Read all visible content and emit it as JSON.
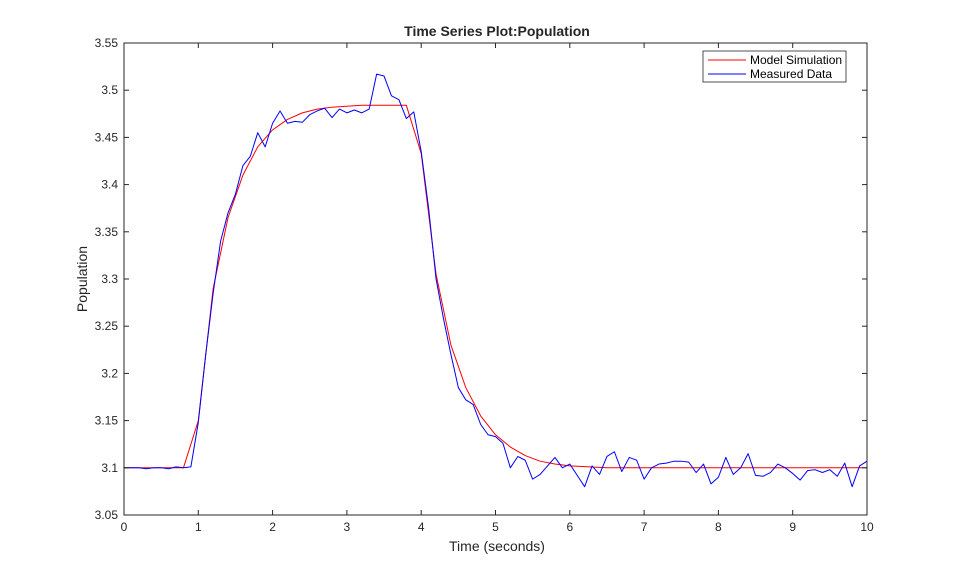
{
  "chart_data": {
    "type": "line",
    "title": "Time Series Plot:Population",
    "xlabel": "Time (seconds)",
    "ylabel": "Population",
    "xlim": [
      0,
      10
    ],
    "ylim": [
      3.05,
      3.55
    ],
    "xticks": [
      "0",
      "1",
      "2",
      "3",
      "4",
      "5",
      "6",
      "7",
      "8",
      "9",
      "10"
    ],
    "yticks": [
      "3.05",
      "3.1",
      "3.15",
      "3.2",
      "3.25",
      "3.3",
      "3.35",
      "3.4",
      "3.45",
      "3.5",
      "3.55"
    ],
    "grid": false,
    "legend_position": "top-right",
    "series": [
      {
        "name": "Model Simulation",
        "color": "#ff0000",
        "x": [
          0,
          0.8,
          1.0,
          1.2,
          1.4,
          1.6,
          1.8,
          2.0,
          2.2,
          2.4,
          2.6,
          2.8,
          3.0,
          3.2,
          3.4,
          3.6,
          3.8,
          4.0,
          4.2,
          4.4,
          4.6,
          4.8,
          5.0,
          5.2,
          5.4,
          5.6,
          5.8,
          6.0,
          6.5,
          7.0,
          8.0,
          9.0,
          10.0
        ],
        "values": [
          3.1,
          3.1,
          3.15,
          3.29,
          3.365,
          3.41,
          3.44,
          3.458,
          3.469,
          3.476,
          3.48,
          3.482,
          3.483,
          3.484,
          3.484,
          3.484,
          3.484,
          3.433,
          3.305,
          3.23,
          3.185,
          3.155,
          3.135,
          3.122,
          3.113,
          3.107,
          3.104,
          3.102,
          3.1,
          3.1,
          3.1,
          3.1,
          3.1
        ]
      },
      {
        "name": "Measured Data",
        "color": "#0000ff",
        "x": [
          0,
          0.1,
          0.2,
          0.3,
          0.4,
          0.5,
          0.6,
          0.7,
          0.8,
          0.9,
          1.0,
          1.1,
          1.2,
          1.3,
          1.4,
          1.5,
          1.6,
          1.7,
          1.8,
          1.9,
          2.0,
          2.1,
          2.2,
          2.3,
          2.4,
          2.5,
          2.6,
          2.7,
          2.8,
          2.9,
          3.0,
          3.1,
          3.2,
          3.3,
          3.4,
          3.5,
          3.6,
          3.7,
          3.8,
          3.9,
          4.0,
          4.1,
          4.2,
          4.3,
          4.4,
          4.5,
          4.6,
          4.7,
          4.8,
          4.9,
          5.0,
          5.1,
          5.2,
          5.3,
          5.4,
          5.5,
          5.6,
          5.7,
          5.8,
          5.9,
          6.0,
          6.1,
          6.2,
          6.3,
          6.4,
          6.5,
          6.6,
          6.7,
          6.8,
          6.9,
          7.0,
          7.1,
          7.2,
          7.3,
          7.4,
          7.5,
          7.6,
          7.7,
          7.8,
          7.9,
          8.0,
          8.1,
          8.2,
          8.3,
          8.4,
          8.5,
          8.6,
          8.7,
          8.8,
          8.9,
          9.0,
          9.1,
          9.2,
          9.3,
          9.4,
          9.5,
          9.6,
          9.7,
          9.8,
          9.9,
          10.0
        ],
        "values": [
          3.1,
          3.1,
          3.1,
          3.099,
          3.1,
          3.1,
          3.099,
          3.101,
          3.1,
          3.101,
          3.148,
          3.22,
          3.285,
          3.34,
          3.37,
          3.39,
          3.42,
          3.43,
          3.455,
          3.44,
          3.465,
          3.478,
          3.465,
          3.467,
          3.466,
          3.474,
          3.478,
          3.481,
          3.471,
          3.48,
          3.476,
          3.479,
          3.476,
          3.48,
          3.517,
          3.515,
          3.494,
          3.49,
          3.47,
          3.477,
          3.435,
          3.375,
          3.3,
          3.258,
          3.22,
          3.185,
          3.172,
          3.167,
          3.146,
          3.135,
          3.133,
          3.126,
          3.1,
          3.112,
          3.108,
          3.088,
          3.093,
          3.102,
          3.111,
          3.1,
          3.104,
          3.092,
          3.08,
          3.102,
          3.093,
          3.112,
          3.117,
          3.096,
          3.111,
          3.108,
          3.088,
          3.1,
          3.104,
          3.105,
          3.107,
          3.107,
          3.106,
          3.095,
          3.104,
          3.083,
          3.09,
          3.111,
          3.093,
          3.1,
          3.115,
          3.092,
          3.091,
          3.095,
          3.104,
          3.1,
          3.094,
          3.087,
          3.097,
          3.098,
          3.095,
          3.098,
          3.091,
          3.105,
          3.08,
          3.102,
          3.107
        ]
      }
    ]
  }
}
